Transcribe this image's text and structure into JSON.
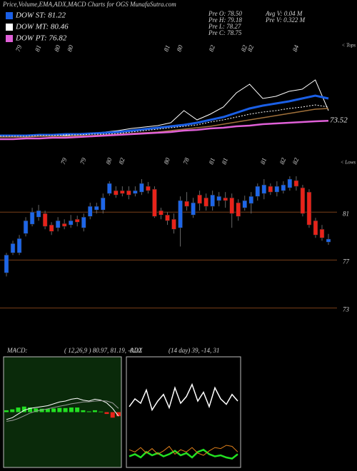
{
  "chart_data": [
    {
      "type": "line",
      "title": "Price,Volume,EMA,ADX,MACD Charts for OGS MunafaSutra.com",
      "stats": [
        "Pre  O: 78.50",
        "Pre  H: 79.18",
        "Pre  L: 78.27",
        "Pre  C: 78.75",
        "Avg  V: 0.04  M",
        "Pre  V: 0.322  M"
      ],
      "ylim": [
        70,
        86
      ],
      "series": [
        {
          "color": "#ffffff",
          "width": 1,
          "values": [
            70.91,
            71.03,
            71.03,
            71.14,
            71.26,
            71.14,
            71.37,
            71.49,
            71.71,
            71.94,
            72.29,
            72.51,
            72.74,
            73.2,
            75.14,
            73.66,
            74.57,
            75.71,
            78.0,
            79.37,
            77.09,
            77.43,
            78.23,
            78.57,
            80.06,
            75.14
          ]
        },
        {
          "name": "DOW ST: 81.22",
          "color": "#1a5fe6",
          "width": 3,
          "values": [
            71.14,
            71.14,
            71.14,
            71.26,
            71.26,
            71.37,
            71.37,
            71.49,
            71.6,
            71.71,
            71.94,
            72.17,
            72.4,
            72.63,
            72.86,
            73.2,
            73.66,
            74.11,
            74.8,
            75.49,
            75.94,
            76.29,
            76.63,
            77.09,
            77.54,
            77.09
          ]
        },
        {
          "name": "DOW MT: 80.46",
          "color": "#ffffff",
          "width": 1,
          "dash": true,
          "values": [
            71.03,
            71.03,
            71.03,
            71.14,
            71.14,
            71.26,
            71.26,
            71.37,
            71.37,
            71.49,
            71.71,
            71.94,
            72.17,
            72.4,
            72.63,
            72.86,
            73.31,
            73.66,
            74.11,
            74.57,
            74.91,
            75.14,
            75.49,
            75.71,
            76.06,
            75.71
          ]
        },
        {
          "color": "#a0703a",
          "width": 1.5,
          "values": [
            70.91,
            70.91,
            70.91,
            71.03,
            71.03,
            71.03,
            71.14,
            71.14,
            71.26,
            71.37,
            71.49,
            71.6,
            71.71,
            71.94,
            72.17,
            72.4,
            72.63,
            72.97,
            73.31,
            73.66,
            74.0,
            74.34,
            74.69,
            75.03,
            75.37,
            75.49
          ]
        },
        {
          "name": "DOW PT: 76.82",
          "color": "#e060d8",
          "width": 2.5,
          "values": [
            70.57,
            70.57,
            70.69,
            70.69,
            70.8,
            70.8,
            70.91,
            71.03,
            71.14,
            71.26,
            71.37,
            71.49,
            71.6,
            71.71,
            71.94,
            72.06,
            72.29,
            72.4,
            72.63,
            72.74,
            72.97,
            73.09,
            73.2,
            73.31,
            73.43,
            73.52
          ]
        }
      ],
      "tops_marker": "< Tops",
      "tops": [
        null,
        null,
        "79",
        null,
        null,
        "81",
        null,
        null,
        "80",
        null,
        "80",
        null,
        null,
        null,
        null,
        null,
        null,
        null,
        null,
        null,
        null,
        null,
        null,
        null,
        null,
        "81",
        null,
        "80",
        null,
        null,
        null,
        null,
        "82",
        null,
        null,
        null,
        null,
        "82",
        "82",
        null,
        null,
        null,
        null,
        null,
        null,
        "84",
        null,
        null,
        null,
        null,
        null
      ]
    },
    {
      "type": "candlestick",
      "up_color": "#1e66e8",
      "down_color": "#e8231a",
      "ylim": [
        72.5,
        85
      ],
      "yticks": [
        81,
        77,
        73
      ],
      "ohlc": [
        [
          75.93,
          77.6,
          75.63,
          77.42
        ],
        [
          77.6,
          78.61,
          77.42,
          78.37
        ],
        [
          77.6,
          79.09,
          77.42,
          78.79
        ],
        [
          79.21,
          80.58,
          78.97,
          80.28
        ],
        [
          79.99,
          81.36,
          79.81,
          81.0
        ],
        [
          80.58,
          81.6,
          80.28,
          81.12
        ],
        [
          80.88,
          81.12,
          79.57,
          79.81
        ],
        [
          79.93,
          80.16,
          79.09,
          79.39
        ],
        [
          79.69,
          80.58,
          79.39,
          80.28
        ],
        [
          80.04,
          80.4,
          79.57,
          79.81
        ],
        [
          79.93,
          80.76,
          79.69,
          80.28
        ],
        [
          80.4,
          80.7,
          79.81,
          80.16
        ],
        [
          79.69,
          80.88,
          79.39,
          80.58
        ],
        [
          80.64,
          81.78,
          80.4,
          81.48
        ],
        [
          81.18,
          81.78,
          80.88,
          81.48
        ],
        [
          81.18,
          82.55,
          80.88,
          82.19
        ],
        [
          82.55,
          83.57,
          82.37,
          83.39
        ],
        [
          82.79,
          83.15,
          82.19,
          82.43
        ],
        [
          82.79,
          83.15,
          82.31,
          82.55
        ],
        [
          82.79,
          83.15,
          82.07,
          82.43
        ],
        [
          82.55,
          83.15,
          82.31,
          82.79
        ],
        [
          82.67,
          83.75,
          82.43,
          83.39
        ],
        [
          83.15,
          83.51,
          82.55,
          82.79
        ],
        [
          82.91,
          83.15,
          80.52,
          80.64
        ],
        [
          81.12,
          81.36,
          80.4,
          80.76
        ],
        [
          80.76,
          81.0,
          79.93,
          80.28
        ],
        [
          80.4,
          80.88,
          79.21,
          79.57
        ],
        [
          79.69,
          82.31,
          78.13,
          81.96
        ],
        [
          81.9,
          82.67,
          81.12,
          81.48
        ],
        [
          80.76,
          82.19,
          80.52,
          81.78
        ],
        [
          82.43,
          82.79,
          81.12,
          81.72
        ],
        [
          82.19,
          82.55,
          81.12,
          81.48
        ],
        [
          81.48,
          82.79,
          81.12,
          82.43
        ],
        [
          81.96,
          82.67,
          81.48,
          82.31
        ],
        [
          82.19,
          82.67,
          81.36,
          81.96
        ],
        [
          82.19,
          82.55,
          79.69,
          80.88
        ],
        [
          81.78,
          82.07,
          80.28,
          80.64
        ],
        [
          81.36,
          82.37,
          81.12,
          81.96
        ],
        [
          81.72,
          82.67,
          80.88,
          82.31
        ],
        [
          82.31,
          83.39,
          81.96,
          83.15
        ],
        [
          82.55,
          83.75,
          82.07,
          83.27
        ],
        [
          83.15,
          83.39,
          82.43,
          82.67
        ],
        [
          82.67,
          83.57,
          82.31,
          83.15
        ],
        [
          82.79,
          83.57,
          82.55,
          83.27
        ],
        [
          83.03,
          83.99,
          82.79,
          83.75
        ],
        [
          83.63,
          83.99,
          82.79,
          83.15
        ],
        [
          83.03,
          83.27,
          80.64,
          80.88
        ],
        [
          82.67,
          82.91,
          79.69,
          79.93
        ],
        [
          80.28,
          80.52,
          78.85,
          79.09
        ],
        [
          79.57,
          79.93,
          78.61,
          78.85
        ],
        [
          78.5,
          79.18,
          78.27,
          78.75
        ]
      ],
      "lows_marker": "< Lows",
      "lows": [
        null,
        null,
        null,
        null,
        null,
        null,
        null,
        null,
        null,
        "79",
        null,
        null,
        "79",
        null,
        null,
        null,
        "80",
        null,
        "82",
        null,
        null,
        null,
        null,
        null,
        null,
        "80",
        null,
        null,
        "78",
        null,
        null,
        null,
        "81",
        null,
        "81",
        null,
        null,
        null,
        null,
        null,
        "81",
        null,
        null,
        "82",
        null,
        "82",
        null,
        null,
        null,
        null,
        null
      ]
    },
    {
      "type": "macd",
      "label": "MACD:",
      "params": "( 12,26,9 ) 80.97,  81.19,  -0.22",
      "ylim": [
        -3,
        3
      ],
      "histogram": {
        "color": "#22e022",
        "values": [
          0.1,
          0.15,
          0.25,
          0.3,
          0.25,
          0.2,
          0.18,
          0.17,
          0.2,
          0.23,
          0.22,
          0.25,
          0.25,
          0.1,
          0.04,
          0.1,
          0.03,
          -0.1,
          -0.3,
          -0.22
        ]
      },
      "series": [
        {
          "color": "#ffffff",
          "values": [
            -0.4,
            -0.3,
            -0.1,
            0.1,
            0.2,
            0.25,
            0.3,
            0.35,
            0.45,
            0.55,
            0.6,
            0.7,
            0.75,
            0.65,
            0.6,
            0.7,
            0.65,
            0.5,
            0.2,
            -0.22
          ]
        },
        {
          "color": "#9a9a9a",
          "values": [
            -0.5,
            -0.45,
            -0.35,
            -0.2,
            -0.05,
            0.05,
            0.12,
            0.18,
            0.25,
            0.32,
            0.38,
            0.45,
            0.5,
            0.55,
            0.56,
            0.6,
            0.62,
            0.6,
            0.5,
            0.2
          ]
        }
      ]
    },
    {
      "type": "adx",
      "label": "ADX",
      "params": "(14  day) 39,  -14,  31",
      "ylim": [
        0,
        100
      ],
      "series": [
        {
          "color": "#ffffff",
          "width": 1.5,
          "values": [
            55,
            62,
            58,
            70,
            52,
            60,
            66,
            54,
            72,
            58,
            64,
            75,
            60,
            68,
            55,
            72,
            62,
            57,
            66,
            60
          ]
        },
        {
          "color": "#22e022",
          "width": 2.5,
          "values": [
            10,
            12,
            9,
            14,
            11,
            13,
            10,
            12,
            15,
            11,
            13,
            9,
            14,
            16,
            12,
            10,
            11,
            9,
            8,
            12
          ]
        },
        {
          "color": "#e0801a",
          "width": 1,
          "values": [
            16,
            14,
            18,
            13,
            17,
            12,
            15,
            19,
            12,
            16,
            14,
            18,
            13,
            11,
            15,
            18,
            17,
            20,
            19,
            14
          ]
        }
      ]
    }
  ]
}
